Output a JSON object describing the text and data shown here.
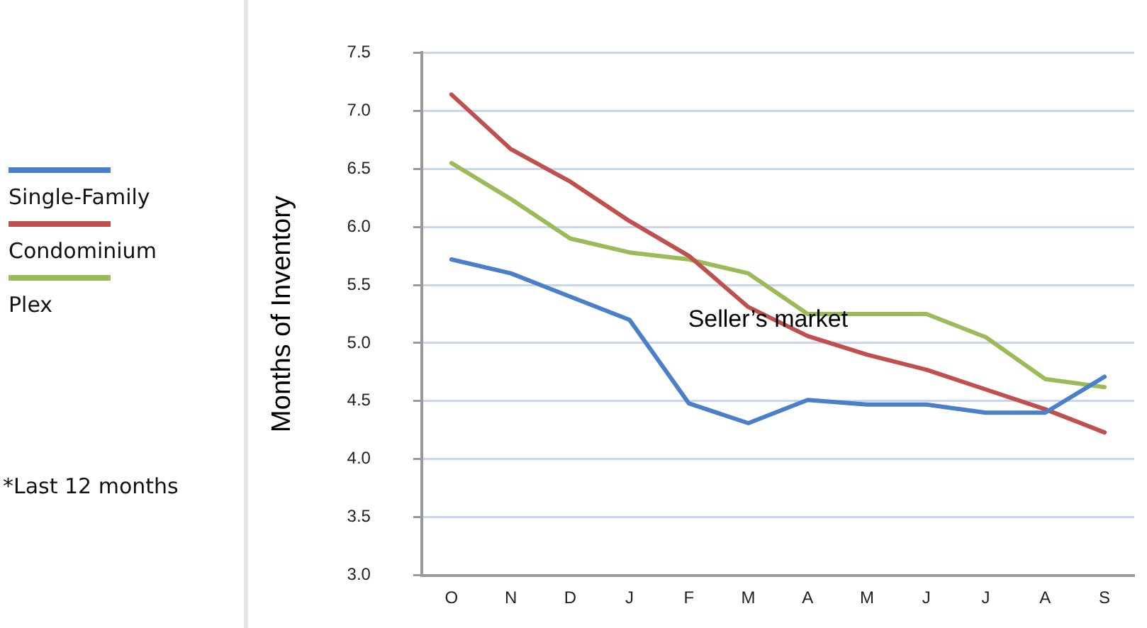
{
  "chart_data": {
    "type": "line",
    "ylabel": "Months of Inventory",
    "categories": [
      "O",
      "N",
      "D",
      "J",
      "F",
      "M",
      "A",
      "M",
      "J",
      "J",
      "A",
      "S"
    ],
    "series": [
      {
        "name": "Single-Family",
        "color": "#4a7fc9",
        "values": [
          5.72,
          5.6,
          5.4,
          5.2,
          4.48,
          4.31,
          4.51,
          4.47,
          4.47,
          4.4,
          4.4,
          4.71
        ]
      },
      {
        "name": "Condominium",
        "color": "#c0504d",
        "values": [
          7.14,
          6.67,
          6.39,
          6.05,
          5.75,
          5.31,
          5.06,
          4.9,
          4.77,
          4.6,
          4.43,
          4.23
        ]
      },
      {
        "name": "Plex",
        "color": "#9bbb59",
        "values": [
          6.55,
          6.24,
          5.9,
          5.78,
          5.72,
          5.6,
          5.25,
          5.25,
          5.25,
          5.05,
          4.69,
          4.62
        ]
      }
    ],
    "ylim": [
      3,
      7.5
    ],
    "yticks": [
      {
        "value": 3,
        "label": "3.0"
      },
      {
        "value": 3.5,
        "label": "3.5"
      },
      {
        "value": 4,
        "label": "4.0"
      },
      {
        "value": 4.5,
        "label": "4.5"
      },
      {
        "value": 5,
        "label": "5.0"
      },
      {
        "value": 5.5,
        "label": "5.5"
      },
      {
        "value": 6,
        "label": "6.0"
      },
      {
        "value": 6.5,
        "label": "6.5"
      },
      {
        "value": 7,
        "label": "7.0"
      },
      {
        "value": 7.5,
        "label": "7.5"
      }
    ],
    "grid": "y",
    "legend": "left",
    "marker": "none",
    "line_style": "solid",
    "annotations": [
      "Seller’s market",
      "*Last 12 months"
    ]
  }
}
